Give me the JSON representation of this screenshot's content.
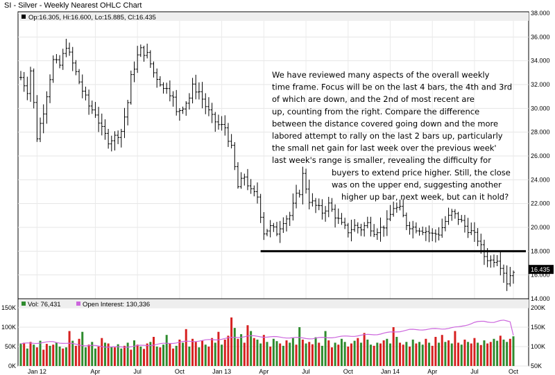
{
  "header": {
    "title": "SI - Silver - Weekly Nearest OHLC Chart"
  },
  "legend": {
    "ohlc": "Op:16.305, Hi:16.600, Lo:15.885, Cl:16.435",
    "volume": "Vol: 76,431",
    "open_interest": "Open Interest: 130,336"
  },
  "annotation": {
    "lines": [
      "We have reviewed many aspects of the overall weekly",
      "time frame.  Focus will be on the last 4 bars, the 4th and 3rd",
      "of which are down, and the 2nd of most recent are",
      "up, counting from the right.  Compare the difference",
      "between the distance covered going down and the more",
      "labored attempt to rally on the last 2 bars up, particularly",
      "the small net gain for last week over the previous week'",
      "last week's range is smaller, revealing the difficulty for",
      "buyers to extend price higher.  Still, the close",
      "was on the upper end, suggesting another",
      "higher up bar, next week, but can it hold?"
    ]
  },
  "colors": {
    "up_volume": "#2e8b2e",
    "down_volume": "#d62020",
    "open_interest": "#cc66dd",
    "price_bar": "#000000",
    "support_line": "#000000",
    "last_price_box": "#000000"
  },
  "chart_data": [
    {
      "type": "ohlc",
      "title": "SI - Silver - Weekly Nearest OHLC Chart",
      "ylim": [
        14,
        38
      ],
      "y_ticks": [
        "14.000",
        "16.000",
        "18.000",
        "20.000",
        "22.000",
        "24.000",
        "26.000",
        "28.000",
        "30.000",
        "32.000",
        "34.000",
        "36.000",
        "38.000"
      ],
      "x_ticks": [
        "Jan 12",
        "Apr",
        "Jul",
        "Oct",
        "Jan 13",
        "Apr",
        "Jul",
        "Oct",
        "Jan 14",
        "Apr",
        "Jul",
        "Oct"
      ],
      "last_price_label": "16.435",
      "support_level": 18.0,
      "close_path": [
        [
          0,
          32.6
        ],
        [
          2,
          31.5
        ],
        [
          3,
          33.2
        ],
        [
          5,
          27.6
        ],
        [
          7,
          29.8
        ],
        [
          9,
          32.6
        ],
        [
          10,
          34.0
        ],
        [
          12,
          33.6
        ],
        [
          14,
          35.3
        ],
        [
          15,
          34.5
        ],
        [
          17,
          33.0
        ],
        [
          19,
          31.5
        ],
        [
          21,
          30.2
        ],
        [
          23,
          29.6
        ],
        [
          25,
          28.2
        ],
        [
          27,
          27.3
        ],
        [
          29,
          27.6
        ],
        [
          31,
          28.1
        ],
        [
          33,
          30.5
        ],
        [
          34,
          32.6
        ],
        [
          36,
          34.4
        ],
        [
          37,
          34.9
        ],
        [
          39,
          34.5
        ],
        [
          41,
          33.0
        ],
        [
          43,
          32.2
        ],
        [
          44,
          31.6
        ],
        [
          45,
          31.9
        ],
        [
          47,
          30.8
        ],
        [
          48,
          29.6
        ],
        [
          50,
          30.2
        ],
        [
          52,
          30.9
        ],
        [
          53,
          31.8
        ],
        [
          55,
          31.4
        ],
        [
          57,
          30.2
        ],
        [
          59,
          29.2
        ],
        [
          61,
          28.6
        ],
        [
          63,
          28.4
        ],
        [
          65,
          26.6
        ],
        [
          67,
          23.4
        ],
        [
          69,
          24.3
        ],
        [
          71,
          23.0
        ],
        [
          73,
          22.6
        ],
        [
          75,
          19.6
        ],
        [
          77,
          20.0
        ],
        [
          79,
          19.6
        ],
        [
          81,
          20.6
        ],
        [
          83,
          21.0
        ],
        [
          85,
          22.6
        ],
        [
          86,
          23.0
        ],
        [
          87,
          24.4
        ],
        [
          89,
          22.3
        ],
        [
          91,
          21.8
        ],
        [
          93,
          21.3
        ],
        [
          95,
          21.9
        ],
        [
          97,
          21.0
        ],
        [
          99,
          20.2
        ],
        [
          101,
          19.7
        ],
        [
          103,
          20.1
        ],
        [
          105,
          19.9
        ],
        [
          107,
          20.3
        ],
        [
          109,
          19.7
        ],
        [
          111,
          19.9
        ],
        [
          113,
          20.4
        ],
        [
          115,
          21.7
        ],
        [
          117,
          21.5
        ],
        [
          119,
          20.3
        ],
        [
          121,
          20.0
        ],
        [
          123,
          19.9
        ],
        [
          125,
          19.7
        ],
        [
          127,
          19.4
        ],
        [
          129,
          19.5
        ],
        [
          131,
          20.5
        ],
        [
          133,
          21.2
        ],
        [
          135,
          20.8
        ],
        [
          137,
          20.1
        ],
        [
          139,
          19.6
        ],
        [
          141,
          19.0
        ],
        [
          143,
          17.6
        ],
        [
          145,
          17.2
        ],
        [
          147,
          17.4
        ],
        [
          149,
          16.3
        ],
        [
          150,
          15.4
        ],
        [
          151,
          16.0
        ],
        [
          152,
          16.435
        ]
      ]
    },
    {
      "type": "bar",
      "title": "",
      "series": [
        {
          "name": "Vol",
          "value_label": "Vol: 76,431"
        },
        {
          "name": "Open Interest",
          "value_label": "Open Interest: 130,336"
        }
      ],
      "volume_left_ticks": [
        "0K",
        "50K",
        "100K",
        "150K"
      ],
      "open_interest_right_ticks": [
        "50K",
        "100K",
        "150K",
        "200K"
      ],
      "volume_ylim": [
        0,
        150000
      ],
      "open_interest_ylim": [
        50000,
        200000
      ],
      "volume_values": [
        58000,
        60000,
        45000,
        62000,
        55000,
        48000,
        65000,
        42000,
        57000,
        52000,
        55000,
        60000,
        50000,
        45000,
        48000,
        90000,
        65000,
        52000,
        70000,
        88000,
        48000,
        55000,
        62000,
        45000,
        50000,
        72000,
        60000,
        58000,
        50000,
        48000,
        56000,
        45000,
        52000,
        60000,
        42000,
        66000,
        55000,
        50000,
        44000,
        58000,
        62000,
        75000,
        50000,
        48000,
        55000,
        80000,
        58000,
        45000,
        52000,
        68000,
        60000,
        95000,
        50000,
        70000,
        62000,
        48000,
        65000,
        55000,
        50000,
        72000,
        60000,
        88000,
        55000,
        68000,
        78000,
        125000,
        98000,
        70000,
        82000,
        60000,
        105000,
        90000,
        72000,
        68000,
        58000,
        80000,
        62000,
        50000,
        70000,
        64000,
        58000,
        52000,
        66000,
        60000,
        72000,
        55000,
        100000,
        68000,
        58000,
        62000,
        56000,
        74000,
        60000,
        52000,
        90000,
        66000,
        48000,
        60000,
        55000,
        70000,
        62000,
        50000,
        58000,
        65000,
        72000,
        60000,
        85000,
        68000,
        55000,
        52000,
        60000,
        58000,
        66000,
        70000,
        58000,
        100000,
        75000,
        60000,
        55000,
        62000,
        50000,
        68000,
        58000,
        62000,
        55000,
        70000,
        60000,
        52000,
        75000,
        60000,
        80000,
        62000,
        66000,
        58000,
        90000,
        60000,
        55000,
        68000,
        62000,
        58000,
        72000,
        60000,
        54000,
        66000,
        58000,
        62000,
        70000,
        65000,
        78000,
        68000,
        62000,
        70000,
        76431
      ],
      "volume_direction": [
        1,
        0,
        1,
        0,
        1,
        0,
        1,
        0,
        0,
        1,
        0,
        1,
        1,
        0,
        1,
        0,
        1,
        0,
        0,
        1,
        1,
        0,
        1,
        1,
        0,
        0,
        1,
        0,
        1,
        0,
        1,
        1,
        0,
        1,
        0,
        1,
        0,
        1,
        0,
        0,
        1,
        0,
        1,
        0,
        1,
        1,
        0,
        0,
        1,
        0,
        1,
        0,
        1,
        0,
        0,
        1,
        0,
        1,
        0,
        0,
        1,
        0,
        1,
        0,
        0,
        0,
        1,
        0,
        1,
        0,
        0,
        1,
        0,
        1,
        1,
        0,
        1,
        0,
        1,
        1,
        0,
        1,
        0,
        1,
        1,
        0,
        1,
        0,
        1,
        0,
        0,
        1,
        0,
        1,
        1,
        0,
        0,
        1,
        0,
        1,
        1,
        0,
        0,
        1,
        0,
        1,
        0,
        1,
        1,
        0,
        1,
        0,
        0,
        1,
        1,
        0,
        1,
        0,
        0,
        1,
        0,
        1,
        0,
        1,
        1,
        0,
        1,
        0,
        0,
        1,
        0,
        1,
        0,
        1,
        0,
        0,
        1,
        0,
        1,
        0,
        0,
        1,
        0,
        1,
        0,
        0,
        1,
        1,
        0,
        1,
        1,
        0,
        1
      ],
      "open_interest_path": [
        [
          0,
          107000
        ],
        [
          10,
          112000
        ],
        [
          20,
          103000
        ],
        [
          30,
          98000
        ],
        [
          40,
          104000
        ],
        [
          50,
          112000
        ],
        [
          60,
          118000
        ],
        [
          70,
          127000
        ],
        [
          80,
          124000
        ],
        [
          90,
          121000
        ],
        [
          100,
          126000
        ],
        [
          110,
          132000
        ],
        [
          120,
          143000
        ],
        [
          130,
          146000
        ],
        [
          135,
          150000
        ],
        [
          140,
          162000
        ],
        [
          143,
          165000
        ],
        [
          146,
          163000
        ],
        [
          149,
          167000
        ],
        [
          151,
          165000
        ],
        [
          152,
          130336
        ]
      ]
    }
  ]
}
